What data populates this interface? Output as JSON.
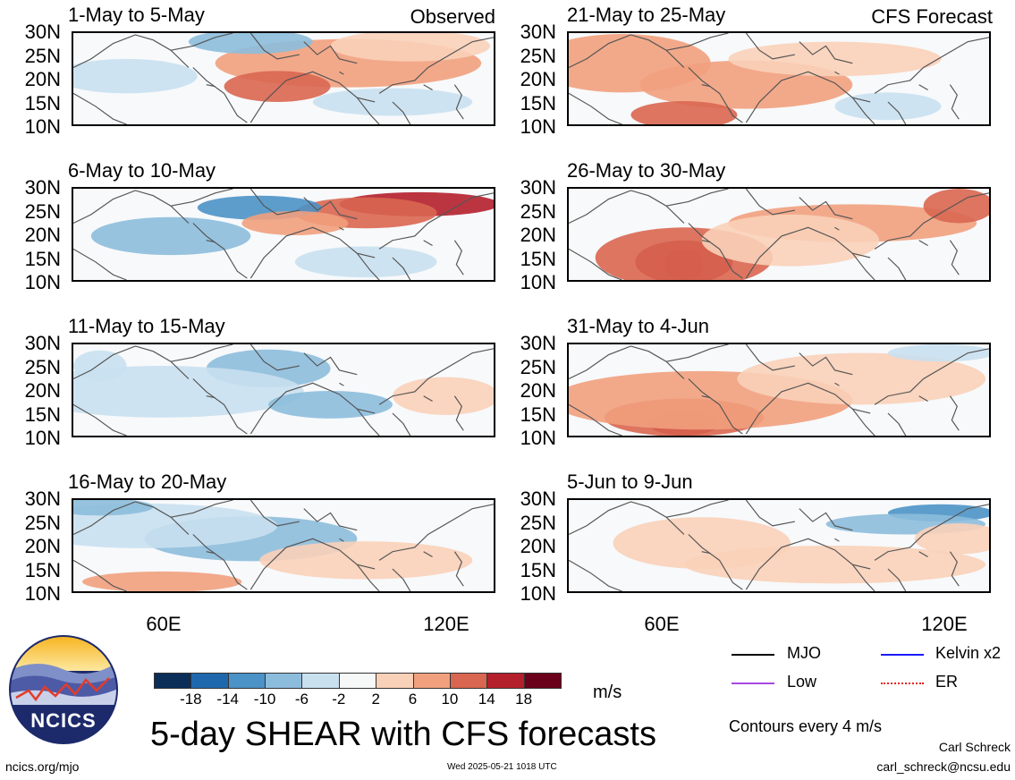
{
  "header": {
    "left_tag": "Observed",
    "right_tag": "CFS Forecast"
  },
  "panels": [
    {
      "title": "1-May to 5-May"
    },
    {
      "title": "21-May to 25-May"
    },
    {
      "title": "6-May to 10-May"
    },
    {
      "title": "26-May to 30-May"
    },
    {
      "title": "11-May to 15-May"
    },
    {
      "title": "31-May to 4-Jun"
    },
    {
      "title": "16-May to 20-May"
    },
    {
      "title": "5-Jun to 9-Jun"
    }
  ],
  "lat_labels": [
    "30N",
    "25N",
    "20N",
    "15N",
    "10N"
  ],
  "lon_labels": [
    "60E",
    "120E"
  ],
  "colorbar": {
    "ticks": [
      "-18",
      "-14",
      "-10",
      "-6",
      "-2",
      "2",
      "6",
      "10",
      "14",
      "18"
    ],
    "unit": "m/s",
    "colors": [
      "#0b2e59",
      "#1f68ae",
      "#4b92c6",
      "#8cbcdc",
      "#c9e0ef",
      "#f6f7f7",
      "#f9d0b8",
      "#f1a07d",
      "#d96650",
      "#b41f2c",
      "#6a0019"
    ]
  },
  "legend": {
    "items": [
      {
        "label": "MJO",
        "color": "#000000"
      },
      {
        "label": "Kelvin x2",
        "color": "#1a1aff"
      },
      {
        "label": "Low",
        "color": "#a648e0"
      },
      {
        "label": "ER",
        "color": "#e62020"
      }
    ],
    "contour_note": "Contours every 4 m/s"
  },
  "footer": {
    "main_title": "5-day SHEAR with CFS forecasts",
    "url": "ncics.org/mjo",
    "timestamp": "Wed 2025-05-21 1018 UTC",
    "author": "Carl Schreck",
    "email": "carl_schreck@ncsu.edu",
    "logo_text": "NCICS"
  }
}
